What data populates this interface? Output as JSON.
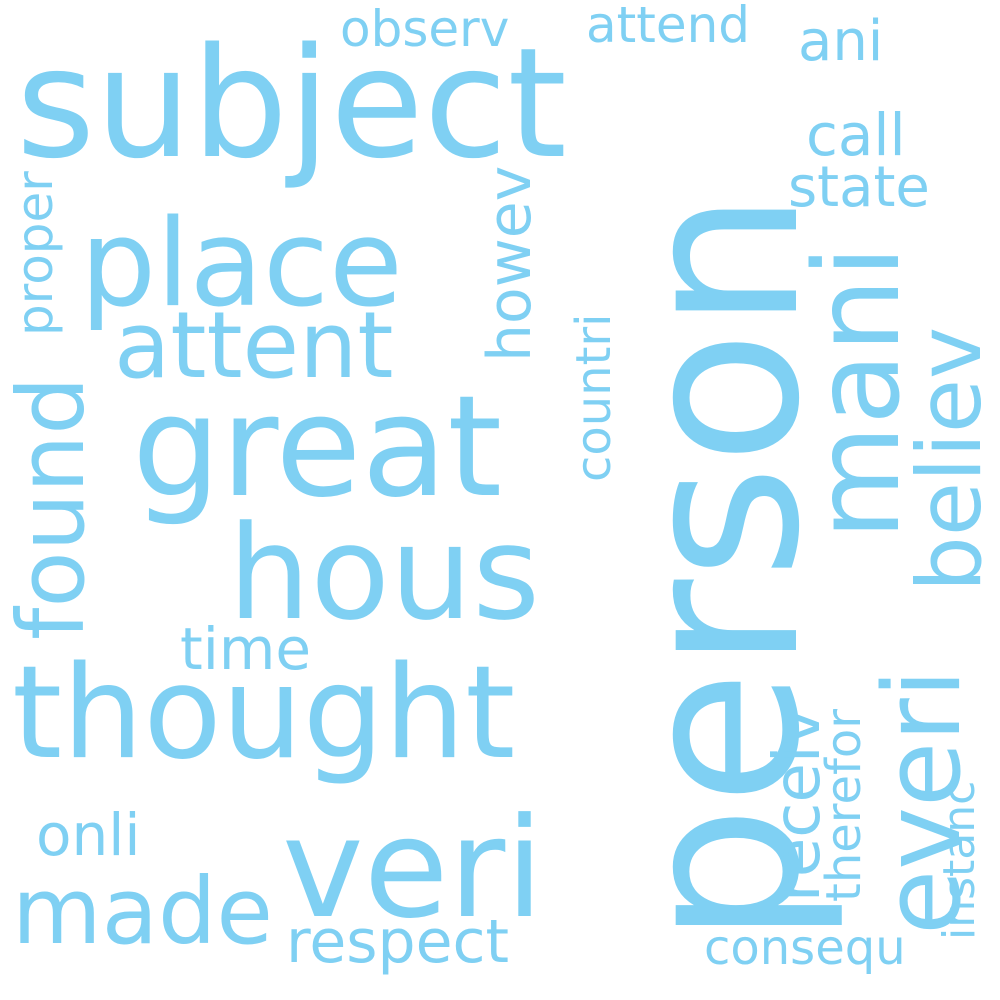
{
  "color": "#7fd0f3",
  "words": [
    "person",
    "subject",
    "place",
    "great",
    "hous",
    "thought",
    "veri",
    "mani",
    "everi",
    "believ",
    "attent",
    "found",
    "made",
    "respect",
    "onli",
    "time",
    "call",
    "state",
    "ani",
    "attend",
    "observ",
    "proper",
    "howev",
    "countri",
    "receiv",
    "therefor",
    "instanc",
    "consequ"
  ]
}
